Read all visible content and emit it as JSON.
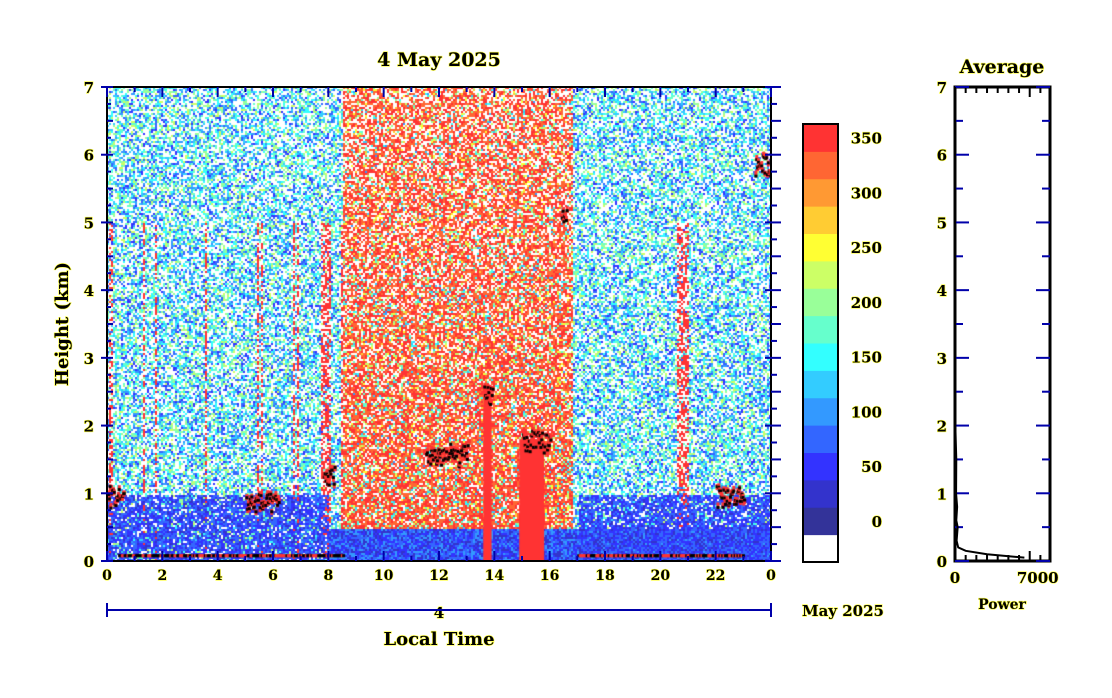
{
  "chart_data": [
    {
      "type": "heatmap",
      "title": "4 May 2025",
      "xlabel": "Local Time",
      "ylabel": "Height (km)",
      "xlim": [
        0,
        24
      ],
      "ylim": [
        0,
        7
      ],
      "x_ticks": [
        "0",
        "2",
        "4",
        "6",
        "8",
        "10",
        "12",
        "14",
        "16",
        "18",
        "20",
        "22",
        "0"
      ],
      "y_ticks": [
        "0",
        "1",
        "2",
        "3",
        "4",
        "5",
        "6",
        "7"
      ],
      "date_bar_label": "4",
      "date_suffix": "May 2025",
      "colorbar": {
        "ticks": [
          "0",
          "50",
          "100",
          "150",
          "200",
          "250",
          "300",
          "350"
        ],
        "colors": [
          "#ffffff",
          "#333399",
          "#3333cc",
          "#3333ff",
          "#3366ff",
          "#3399ff",
          "#33ccff",
          "#33ffff",
          "#66ffcc",
          "#99ff99",
          "#ccff66",
          "#ffff33",
          "#ffcc33",
          "#ff9933",
          "#ff6633",
          "#ff3333"
        ],
        "range": [
          -25,
          375
        ]
      },
      "cloud_layers_km": [
        {
          "time": [
            0,
            0.6
          ],
          "height": 1.0
        },
        {
          "time": [
            5.0,
            6.2
          ],
          "height": 0.9
        },
        {
          "time": [
            7.8,
            8.2
          ],
          "height": 1.3
        },
        {
          "time": [
            11.5,
            13.0
          ],
          "height": 1.6
        },
        {
          "time": [
            13.6,
            13.9
          ],
          "height": 2.5
        },
        {
          "time": [
            15.0,
            16.0
          ],
          "height": 1.8
        },
        {
          "time": [
            16.4,
            16.6
          ],
          "height": 5.2
        },
        {
          "time": [
            22.0,
            23.0
          ],
          "height": 1.0
        },
        {
          "time": [
            23.4,
            24
          ],
          "height": 5.9
        }
      ]
    },
    {
      "type": "line",
      "title": "Average",
      "xlabel": "Power",
      "ylabel": "",
      "xlim": [
        0,
        8900
      ],
      "ylim": [
        0,
        7
      ],
      "x_ticks": [
        "0",
        "7000"
      ],
      "y_ticks": [
        "0",
        "1",
        "2",
        "3",
        "4",
        "5",
        "6",
        "7"
      ],
      "series": [
        {
          "name": "Average",
          "power": [
            6500,
            3000,
            1000,
            300,
            150,
            250,
            120,
            200,
            100,
            120,
            30,
            10,
            10,
            5
          ],
          "height_km": [
            0.05,
            0.1,
            0.15,
            0.2,
            0.3,
            0.5,
            0.6,
            0.8,
            1.0,
            1.5,
            2.0,
            3.0,
            6.0,
            7.0
          ]
        }
      ]
    }
  ]
}
